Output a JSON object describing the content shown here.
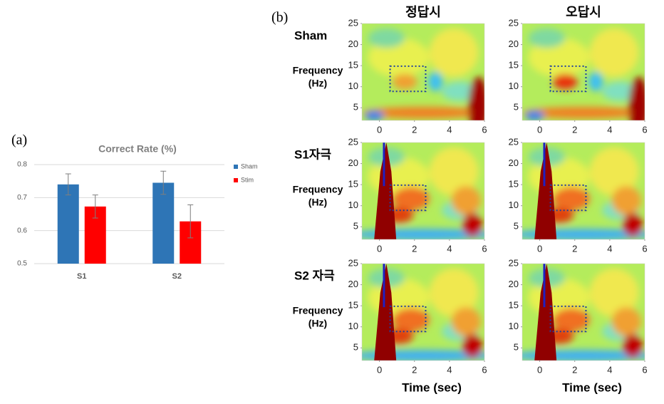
{
  "panel_labels": [
    "(a)",
    "(b)"
  ],
  "chart_data": [
    {
      "type": "bar",
      "title": "Correct Rate (%)",
      "categories": [
        "S1",
        "S2"
      ],
      "series": [
        {
          "name": "Sham",
          "color": "#2e75b6",
          "values": [
            0.74,
            0.745
          ],
          "errors": [
            0.032,
            0.035
          ]
        },
        {
          "name": "Stim",
          "color": "#ff0000",
          "values": [
            0.673,
            0.628
          ],
          "errors": [
            0.035,
            0.05
          ]
        }
      ],
      "ylim": [
        0.5,
        0.8
      ],
      "yticks": [
        0.5,
        0.6,
        0.7,
        0.8
      ],
      "grid": true
    },
    {
      "type": "heatmap",
      "title": "정답시",
      "row_label": "Sham",
      "y_label": [
        "Frequency",
        "(Hz)"
      ],
      "xlim": [
        -1,
        6
      ],
      "xticks": [
        0,
        2,
        4,
        6
      ],
      "ylim": [
        2,
        25
      ],
      "yticks": [
        5,
        10,
        15,
        20,
        25
      ]
    },
    {
      "type": "heatmap",
      "title": "오답시",
      "xlim": [
        -1,
        6
      ],
      "xticks": [
        0,
        2,
        4,
        6
      ],
      "ylim": [
        2,
        25
      ],
      "yticks": [
        5,
        10,
        15,
        20,
        25
      ]
    },
    {
      "type": "heatmap",
      "row_label": "S1자극",
      "y_label": [
        "Frequency",
        "(Hz)"
      ],
      "xlim": [
        -1,
        6
      ],
      "xticks": [
        0,
        2,
        4,
        6
      ],
      "ylim": [
        2,
        25
      ],
      "yticks": [
        5,
        10,
        15,
        20,
        25
      ]
    },
    {
      "type": "heatmap",
      "xlim": [
        -1,
        6
      ],
      "xticks": [
        0,
        2,
        4,
        6
      ],
      "ylim": [
        2,
        25
      ],
      "yticks": [
        5,
        10,
        15,
        20,
        25
      ]
    },
    {
      "type": "heatmap",
      "row_label": "S2 자극",
      "y_label": [
        "Frequency",
        "(Hz)"
      ],
      "x_label": "Time (sec)",
      "xlim": [
        -1,
        6
      ],
      "xticks": [
        0,
        2,
        4,
        6
      ],
      "ylim": [
        2,
        25
      ],
      "yticks": [
        5,
        10,
        15,
        20,
        25
      ]
    },
    {
      "type": "heatmap",
      "x_label": "Time (sec)",
      "xlim": [
        -1,
        6
      ],
      "xticks": [
        0,
        2,
        4,
        6
      ],
      "ylim": [
        2,
        25
      ],
      "yticks": [
        5,
        10,
        15,
        20,
        25
      ]
    }
  ]
}
